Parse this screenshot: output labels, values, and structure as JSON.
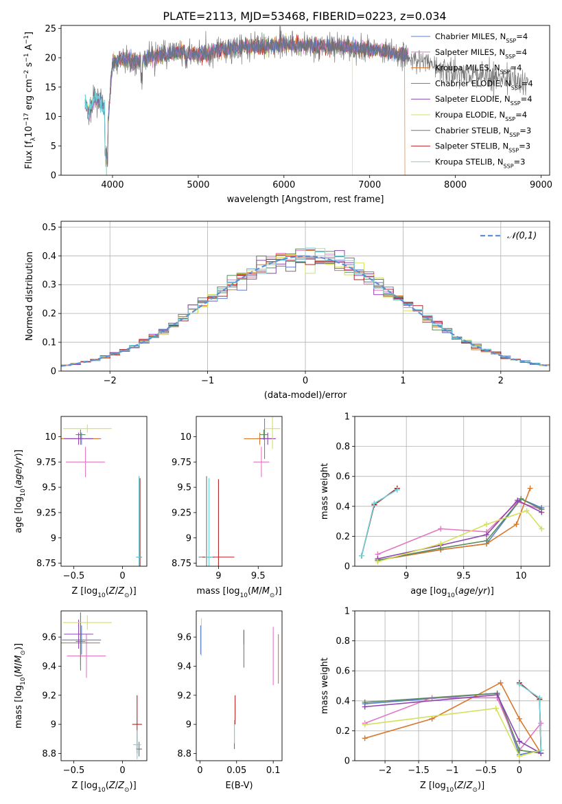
{
  "figure": {
    "title": "PLATE=2113, MJD=53468, FIBERID=0223, z=0.034"
  },
  "colors": {
    "Chabrier MILES": "#5a7fcf",
    "Salpeter MILES": "#e377c2",
    "Kroupa MILES": "#d9772b",
    "Chabrier ELODIE": "#5c8a5c",
    "Salpeter ELODIE": "#8e44ad",
    "Kroupa ELODIE": "#d4e157",
    "Chabrier STELIB": "#707070",
    "Salpeter STELIB": "#b22222",
    "Kroupa STELIB": "#6fd3db"
  },
  "chart_data": [
    {
      "id": "spectrum",
      "type": "line",
      "title": "PLATE=2113, MJD=53468, FIBERID=0223, z=0.034",
      "xlabel": "wavelength [Angstrom, rest frame]",
      "ylabel": "Flux [f_λ 10^-17 erg cm^-2 s^-1 A^-1]",
      "xlim": [
        3400,
        9100
      ],
      "ylim": [
        0,
        25.5
      ],
      "xticks": [
        4000,
        5000,
        6000,
        7000,
        8000,
        9000
      ],
      "yticks": [
        0,
        5,
        10,
        15,
        20,
        25
      ],
      "legend_position": "top-right",
      "legend": [
        "Chabrier MILES, N_SSP=4",
        "Salpeter MILES, N_SSP=4",
        "Kroupa MILES, N_SSP=4",
        "Chabrier ELODIE, N_SSP=4",
        "Salpeter ELODIE, N_SSP=4",
        "Kroupa ELODIE, N_SSP=4",
        "Chabrier STELIB, N_SSP=3",
        "Salpeter STELIB, N_SSP=3",
        "Kroupa STELIB, N_SSP=3"
      ],
      "series_keys": [
        "Chabrier MILES",
        "Salpeter MILES",
        "Kroupa MILES",
        "Chabrier ELODIE",
        "Salpeter ELODIE",
        "Kroupa ELODIE",
        "Chabrier STELIB",
        "Salpeter STELIB",
        "Kroupa STELIB"
      ],
      "profile": {
        "x": [
          3680,
          3720,
          3800,
          3900,
          3950,
          4000,
          4100,
          4300,
          4500,
          4800,
          5000,
          5200,
          5500,
          5800,
          6000,
          6300,
          6600,
          6800,
          7000,
          7200,
          7400,
          7600,
          7800,
          8000,
          8200,
          8400,
          8600,
          8800
        ],
        "y": [
          12.5,
          10.5,
          13.5,
          11.5,
          9.5,
          19.0,
          19.8,
          19.5,
          20.2,
          21.0,
          20.5,
          21.2,
          21.8,
          22.0,
          22.2,
          22.0,
          22.0,
          21.8,
          21.5,
          21.0,
          20.5,
          19.5,
          18.5,
          17.5,
          17.0,
          17.0,
          16.5,
          16.0
        ]
      },
      "cutoffs": [
        {
          "series": "Kroupa STELIB",
          "x": 3930
        },
        {
          "series": "Kroupa ELODIE",
          "x": 6800
        },
        {
          "series": "Kroupa MILES",
          "x": 7410
        }
      ],
      "extended_series": [
        "Chabrier STELIB",
        "Kroupa STELIB"
      ],
      "extended_to": 8850
    },
    {
      "id": "residuals",
      "type": "histogram",
      "xlabel": "(data-model)/error",
      "ylabel": "Normed distribution",
      "xlim": [
        -2.5,
        2.5
      ],
      "ylim": [
        0,
        0.52
      ],
      "xticks": [
        -2,
        -1,
        0,
        1,
        2
      ],
      "yticks": [
        0.0,
        0.1,
        0.2,
        0.3,
        0.4,
        0.5
      ],
      "grid": true,
      "reference_curve": {
        "name": "𝒩(0,1)",
        "style": "dashed",
        "color": "#5b8fd6"
      },
      "legend_position": "top-right",
      "bin_width": 0.1
    },
    {
      "id": "age-vs-Z",
      "type": "errorbar",
      "xlabel": "Z [log10(Z/Z⊙)]",
      "ylabel": "age [log10(age/yr)]",
      "xlim": [
        -0.63,
        0.25
      ],
      "ylim": [
        8.72,
        10.2
      ],
      "xticks": [
        -0.5,
        0.0
      ],
      "yticks": [
        8.75,
        9.0,
        9.25,
        9.5,
        9.75,
        10.0
      ],
      "points": [
        {
          "series": "Chabrier MILES",
          "x": -0.42,
          "y": 9.98,
          "xerr": 0.2,
          "yerr": 0.06
        },
        {
          "series": "Salpeter MILES",
          "x": -0.38,
          "y": 9.75,
          "xerr": 0.2,
          "yerr": 0.15
        },
        {
          "series": "Kroupa MILES",
          "x": -0.43,
          "y": 9.98,
          "xerr": 0.2,
          "yerr": 0.06
        },
        {
          "series": "Chabrier ELODIE",
          "x": -0.43,
          "y": 10.02,
          "xerr": 0.05,
          "yerr": 0.05
        },
        {
          "series": "Salpeter ELODIE",
          "x": -0.45,
          "y": 9.98,
          "xerr": 0.15,
          "yerr": 0.06
        },
        {
          "series": "Kroupa ELODIE",
          "x": -0.36,
          "y": 10.08,
          "xerr": 0.25,
          "yerr": 0.04
        },
        {
          "series": "Chabrier STELIB",
          "x": 0.17,
          "y": 8.81,
          "xerr": 0.03,
          "yerr": 0.8
        },
        {
          "series": "Salpeter STELIB",
          "x": 0.18,
          "y": 8.81,
          "xerr": 0.02,
          "yerr": 0.78
        },
        {
          "series": "Kroupa STELIB",
          "x": 0.17,
          "y": 8.81,
          "xerr": 0.03,
          "yerr": 0.8
        }
      ]
    },
    {
      "id": "age-vs-mass",
      "type": "errorbar",
      "xlabel": "mass [log10(M/M⊙)]",
      "ylabel": "",
      "xlim": [
        8.72,
        9.8
      ],
      "ylim": [
        8.72,
        10.2
      ],
      "xticks": [
        9.0,
        9.5
      ],
      "yticks": [
        8.75,
        9.0,
        9.25,
        9.5,
        9.75,
        10.0
      ],
      "points": [
        {
          "series": "Chabrier MILES",
          "x": 9.58,
          "y": 9.98,
          "xerr": 0.1,
          "yerr": 0.2
        },
        {
          "series": "Salpeter MILES",
          "x": 9.54,
          "y": 9.75,
          "xerr": 0.1,
          "yerr": 0.15
        },
        {
          "series": "Kroupa MILES",
          "x": 9.52,
          "y": 9.98,
          "xerr": 0.2,
          "yerr": 0.06
        },
        {
          "series": "Chabrier ELODIE",
          "x": 9.57,
          "y": 10.02,
          "xerr": 0.05,
          "yerr": 0.05
        },
        {
          "series": "Salpeter ELODIE",
          "x": 9.62,
          "y": 9.98,
          "xerr": 0.1,
          "yerr": 0.06
        },
        {
          "series": "Kroupa ELODIE",
          "x": 9.68,
          "y": 10.08,
          "xerr": 0.1,
          "yerr": 0.2
        },
        {
          "series": "Chabrier STELIB",
          "x": 8.85,
          "y": 8.81,
          "xerr": 0.1,
          "yerr": 0.8
        },
        {
          "series": "Salpeter STELIB",
          "x": 9.0,
          "y": 8.81,
          "xerr": 0.2,
          "yerr": 0.77
        },
        {
          "series": "Kroupa STELIB",
          "x": 8.88,
          "y": 8.81,
          "xerr": 0.05,
          "yerr": 0.78
        }
      ]
    },
    {
      "id": "weight-vs-age",
      "type": "line",
      "xlabel": "age [log10(age/yr)]",
      "ylabel": "mass weight",
      "xlim": [
        8.55,
        10.25
      ],
      "ylim": [
        0.0,
        1.0
      ],
      "xticks": [
        9.0,
        9.5,
        10.0
      ],
      "yticks": [
        0.0,
        0.2,
        0.4,
        0.6,
        0.8,
        1.0
      ],
      "grid": true,
      "series": [
        {
          "series": "Chabrier MILES",
          "x": [
            8.75,
            9.3,
            9.7,
            10.0,
            10.18
          ],
          "y": [
            0.04,
            0.11,
            0.15,
            0.45,
            0.39
          ]
        },
        {
          "series": "Salpeter MILES",
          "x": [
            8.75,
            9.3,
            9.7,
            9.97,
            10.18
          ],
          "y": [
            0.08,
            0.25,
            0.23,
            0.43,
            0.38
          ]
        },
        {
          "series": "Kroupa MILES",
          "x": [
            8.75,
            9.3,
            9.7,
            9.96,
            10.08
          ],
          "y": [
            0.04,
            0.11,
            0.15,
            0.28,
            0.52
          ]
        },
        {
          "series": "Chabrier ELODIE",
          "x": [
            8.75,
            9.3,
            9.7,
            10.0,
            10.18
          ],
          "y": [
            0.04,
            0.12,
            0.17,
            0.45,
            0.38
          ]
        },
        {
          "series": "Salpeter ELODIE",
          "x": [
            8.75,
            9.3,
            9.7,
            9.97,
            10.18
          ],
          "y": [
            0.05,
            0.14,
            0.21,
            0.44,
            0.36
          ]
        },
        {
          "series": "Kroupa ELODIE",
          "x": [
            8.75,
            9.3,
            9.7,
            10.05,
            10.18
          ],
          "y": [
            0.03,
            0.15,
            0.28,
            0.37,
            0.25
          ]
        },
        {
          "series": "Chabrier STELIB",
          "x": [
            8.61,
            8.72,
            8.92
          ],
          "y": [
            0.07,
            0.41,
            0.52
          ]
        },
        {
          "series": "Salpeter STELIB",
          "x": [
            8.61,
            8.72,
            8.92
          ],
          "y": [
            0.07,
            0.41,
            0.52
          ]
        },
        {
          "series": "Kroupa STELIB",
          "x": [
            8.61,
            8.72,
            8.92
          ],
          "y": [
            0.07,
            0.42,
            0.51
          ]
        }
      ]
    },
    {
      "id": "mass-vs-Z",
      "type": "errorbar",
      "xlabel": "Z [log10(Z/Z⊙)]",
      "ylabel": "mass [log10(M/M⊙)]",
      "xlim": [
        -0.63,
        0.25
      ],
      "ylim": [
        8.75,
        9.78
      ],
      "xticks": [
        -0.5,
        0.0
      ],
      "yticks": [
        8.8,
        9.0,
        9.2,
        9.4,
        9.6
      ],
      "points": [
        {
          "series": "Chabrier MILES",
          "x": -0.42,
          "y": 9.58,
          "xerr": 0.2,
          "yerr": 0.1
        },
        {
          "series": "Salpeter MILES",
          "x": -0.37,
          "y": 9.47,
          "xerr": 0.2,
          "yerr": 0.15
        },
        {
          "series": "Kroupa MILES",
          "x": -0.43,
          "y": 9.56,
          "xerr": 0.2,
          "yerr": 0.15
        },
        {
          "series": "Chabrier ELODIE",
          "x": -0.43,
          "y": 9.57,
          "xerr": 0.05,
          "yerr": 0.2
        },
        {
          "series": "Salpeter ELODIE",
          "x": -0.45,
          "y": 9.62,
          "xerr": 0.15,
          "yerr": 0.1
        },
        {
          "series": "Kroupa ELODIE",
          "x": -0.36,
          "y": 9.7,
          "xerr": 0.25,
          "yerr": 0.05
        },
        {
          "series": "Chabrier STELIB",
          "x": 0.17,
          "y": 8.83,
          "xerr": 0.03,
          "yerr": 0.05
        },
        {
          "series": "Salpeter STELIB",
          "x": 0.15,
          "y": 9.0,
          "xerr": 0.05,
          "yerr": 0.2
        },
        {
          "series": "Kroupa STELIB",
          "x": 0.15,
          "y": 8.86,
          "xerr": 0.04,
          "yerr": 0.1
        }
      ]
    },
    {
      "id": "mass-vs-EBV",
      "type": "errorbar",
      "xlabel": "E(B-V)",
      "ylabel": "",
      "xlim": [
        -0.005,
        0.112
      ],
      "ylim": [
        8.75,
        9.78
      ],
      "xticks": [
        0.0,
        0.05,
        0.1
      ],
      "yticks": [
        8.8,
        9.0,
        9.2,
        9.4,
        9.6
      ],
      "points": [
        {
          "series": "Chabrier MILES",
          "x": 0.001,
          "y": 9.58,
          "xerr": 0.0,
          "yerr": 0.1
        },
        {
          "series": "Salpeter MILES",
          "x": 0.1,
          "y": 9.47,
          "xerr": 0.0,
          "yerr": 0.2
        },
        {
          "series": "Kroupa MILES",
          "x": 0.107,
          "y": 9.45,
          "xerr": 0.0,
          "yerr": 0.17
        },
        {
          "series": "Chabrier ELODIE",
          "x": 0.06,
          "y": 9.52,
          "xerr": 0.0,
          "yerr": 0.13
        },
        {
          "series": "Salpeter ELODIE",
          "x": 0.06,
          "y": 9.6,
          "xerr": 0.0,
          "yerr": 0.05
        },
        {
          "series": "Kroupa ELODIE",
          "x": 0.002,
          "y": 9.6,
          "xerr": 0.0,
          "yerr": 0.13
        },
        {
          "series": "Chabrier STELIB",
          "x": 0.047,
          "y": 8.9,
          "xerr": 0.0,
          "yerr": 0.07
        },
        {
          "series": "Salpeter STELIB",
          "x": 0.048,
          "y": 9.1,
          "xerr": 0.0,
          "yerr": 0.1
        },
        {
          "series": "Kroupa STELIB",
          "x": 0.047,
          "y": 8.95,
          "xerr": 0.0,
          "yerr": 0.08
        }
      ]
    },
    {
      "id": "weight-vs-Z",
      "type": "line",
      "xlabel": "Z [log10(Z/Z⊙)]",
      "ylabel": "mass weight",
      "xlim": [
        -2.45,
        0.45
      ],
      "ylim": [
        0.0,
        1.0
      ],
      "xticks": [
        -2.0,
        -1.5,
        -1.0,
        -0.5,
        0.0
      ],
      "yticks": [
        0.0,
        0.2,
        0.4,
        0.6,
        0.8,
        1.0
      ],
      "grid": true,
      "series": [
        {
          "series": "Chabrier MILES",
          "x": [
            -2.3,
            -0.33,
            0.0,
            0.32
          ],
          "y": [
            0.38,
            0.45,
            0.04,
            0.07
          ]
        },
        {
          "series": "Salpeter MILES",
          "x": [
            -2.3,
            -1.3,
            -0.33,
            0.0,
            0.32
          ],
          "y": [
            0.25,
            0.42,
            0.42,
            0.07,
            0.25
          ]
        },
        {
          "series": "Kroupa MILES",
          "x": [
            -2.3,
            -1.3,
            -0.28,
            0.0,
            0.32
          ],
          "y": [
            0.15,
            0.28,
            0.52,
            0.28,
            0.05
          ]
        },
        {
          "series": "Chabrier ELODIE",
          "x": [
            -2.3,
            -0.33,
            0.0,
            0.32
          ],
          "y": [
            0.39,
            0.45,
            0.07,
            0.05
          ]
        },
        {
          "series": "Salpeter ELODIE",
          "x": [
            -2.3,
            -0.33,
            0.0,
            0.32
          ],
          "y": [
            0.36,
            0.44,
            0.13,
            0.05
          ]
        },
        {
          "series": "Kroupa ELODIE",
          "x": [
            -2.3,
            -0.35,
            0.0,
            0.32
          ],
          "y": [
            0.24,
            0.35,
            0.03,
            0.07
          ]
        },
        {
          "series": "Chabrier STELIB",
          "x": [
            0.0,
            0.3,
            0.32
          ],
          "y": [
            0.52,
            0.41,
            0.07
          ]
        },
        {
          "series": "Salpeter STELIB",
          "x": [
            0.0,
            0.3,
            0.32
          ],
          "y": [
            0.52,
            0.41,
            0.07
          ]
        },
        {
          "series": "Kroupa STELIB",
          "x": [
            0.0,
            0.3,
            0.32
          ],
          "y": [
            0.51,
            0.42,
            0.07
          ]
        }
      ]
    }
  ]
}
